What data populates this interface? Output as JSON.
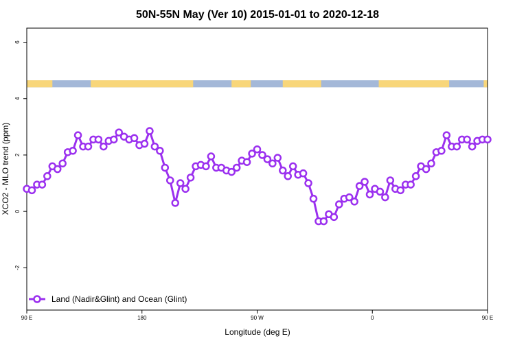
{
  "chart_data": {
    "type": "line",
    "title": "50N-55N May (Ver 10)   2015-01-01 to 2020-12-18",
    "xlabel": "Longitude (deg E)",
    "ylabel": "XCO2 - MLO trend (ppm)",
    "xlim": [
      90,
      450
    ],
    "ylim": [
      -3.5,
      6.5
    ],
    "x_ticks": [
      {
        "value": 90,
        "label": "90 E"
      },
      {
        "value": 180,
        "label": "180"
      },
      {
        "value": 270,
        "label": "90 W"
      },
      {
        "value": 360,
        "label": "0"
      },
      {
        "value": 450,
        "label": "90 E"
      },
      {
        "value": 540,
        "label": "180"
      }
    ],
    "y_ticks": [
      {
        "value": -2,
        "label": "-2"
      },
      {
        "value": 0,
        "label": "0"
      },
      {
        "value": 2,
        "label": "2"
      },
      {
        "value": 4,
        "label": "4"
      },
      {
        "value": 6,
        "label": "6"
      }
    ],
    "legend": {
      "position": "bottom-left"
    },
    "series": [
      {
        "name": "Land (Nadir&Glint) and Ocean (Glint)",
        "color": "#9b30ef",
        "x": [
          90,
          94,
          98,
          102,
          106,
          110,
          114,
          118,
          122,
          126,
          130,
          134,
          138,
          142,
          146,
          150,
          154,
          158,
          162,
          166,
          170,
          174,
          178,
          182,
          186,
          190,
          194,
          198,
          202,
          206,
          210,
          214,
          218,
          222,
          226,
          230,
          234,
          238,
          242,
          246,
          250,
          254,
          258,
          262,
          266,
          270,
          274,
          278,
          282,
          286,
          290,
          294,
          298,
          302,
          306,
          310,
          314,
          318,
          322,
          326,
          330,
          334,
          338,
          342,
          346,
          350,
          354,
          358,
          362,
          366,
          370,
          374,
          378,
          382,
          386,
          390,
          394,
          398,
          402,
          406,
          410,
          414,
          418,
          422,
          426,
          430,
          434,
          438,
          442,
          446,
          450
        ],
        "y": [
          0.8,
          0.75,
          0.95,
          0.95,
          1.25,
          1.6,
          1.5,
          1.7,
          2.1,
          2.15,
          2.7,
          2.3,
          2.3,
          2.55,
          2.55,
          2.3,
          2.5,
          2.55,
          2.8,
          2.65,
          2.55,
          2.6,
          2.35,
          2.4,
          2.85,
          2.3,
          2.15,
          1.55,
          1.1,
          0.3,
          1.0,
          0.8,
          1.2,
          1.6,
          1.65,
          1.6,
          1.95,
          1.55,
          1.55,
          1.45,
          1.4,
          1.55,
          1.8,
          1.75,
          2.05,
          2.2,
          2.0,
          1.85,
          1.7,
          1.9,
          1.45,
          1.25,
          1.6,
          1.3,
          1.35,
          1.0,
          0.45,
          -0.35,
          -0.35,
          -0.1,
          -0.2,
          0.25,
          0.45,
          0.5,
          0.35,
          0.9,
          1.05,
          0.6,
          0.8,
          0.7,
          0.5,
          1.1,
          0.8,
          0.75,
          0.95,
          0.95,
          1.25,
          1.6,
          1.5,
          1.7,
          2.1,
          2.15,
          2.7,
          2.3,
          2.3,
          2.55,
          2.55,
          2.3,
          2.5,
          2.55,
          2.55
        ]
      }
    ],
    "land_ocean_band": {
      "y_range": [
        4.4,
        4.65
      ],
      "ocean_color": "#a4b8d8",
      "land_color": "#f8d67a",
      "land_segments": [
        [
          90,
          110
        ],
        [
          140,
          220
        ],
        [
          250,
          265
        ],
        [
          290,
          320
        ],
        [
          365,
          420
        ],
        [
          447,
          450
        ]
      ]
    }
  }
}
